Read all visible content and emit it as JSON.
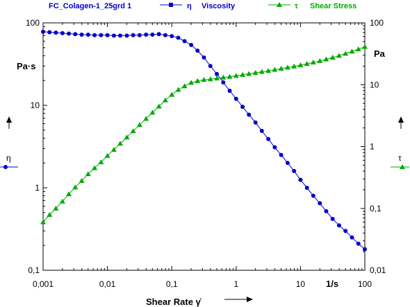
{
  "chart_data": {
    "type": "line",
    "header": {
      "sample": "FC_Colagen-1_25grd 1",
      "series_symbols": [
        "η",
        "τ"
      ],
      "series_names": [
        "Viscosity",
        "Shear Stress"
      ]
    },
    "xlabel": "Shear Rate γ̇",
    "x_unit": "1/s",
    "x_scale": "log",
    "xlim": [
      0.001,
      100
    ],
    "x_ticks": [
      "0,001",
      "0,01",
      "0,1",
      "1",
      "10",
      "100"
    ],
    "left_axis": {
      "symbol": "η",
      "unit": "Pa·s",
      "scale": "log",
      "ylim": [
        0.1,
        100
      ],
      "ticks": [
        "100",
        "10",
        "1",
        "0,1"
      ]
    },
    "right_axis": {
      "symbol": "τ",
      "unit": "Pa",
      "scale": "log",
      "ylim": [
        0.01,
        100
      ],
      "ticks": [
        "100",
        "10",
        "1",
        "0,1",
        "0,01"
      ]
    },
    "grid": false,
    "legend_position": "top",
    "colors": {
      "viscosity": "#0000cc",
      "shear_stress": "#00aa00"
    },
    "series": [
      {
        "name": "Viscosity",
        "axis": "left",
        "marker": "circle",
        "x": [
          0.001,
          0.00126,
          0.00158,
          0.002,
          0.00251,
          0.00316,
          0.00398,
          0.00501,
          0.00631,
          0.00794,
          0.01,
          0.0126,
          0.0158,
          0.02,
          0.0251,
          0.0316,
          0.0398,
          0.0501,
          0.0631,
          0.0794,
          0.1,
          0.126,
          0.158,
          0.2,
          0.251,
          0.316,
          0.398,
          0.501,
          0.631,
          0.794,
          1,
          1.26,
          1.58,
          2,
          2.51,
          3.16,
          3.98,
          5.01,
          6.31,
          7.94,
          10,
          12.6,
          15.8,
          20,
          25.1,
          31.6,
          39.8,
          50.1,
          63.1,
          79.4,
          100
        ],
        "y": [
          78,
          77,
          76,
          75,
          74,
          73,
          72,
          72,
          71,
          71,
          71,
          70,
          70,
          70,
          71,
          71,
          72,
          72,
          73,
          71,
          69,
          66,
          60,
          54,
          46,
          38,
          30,
          24,
          19,
          15,
          12,
          9.6,
          7.7,
          6.2,
          4.9,
          3.9,
          3.1,
          2.5,
          2.0,
          1.6,
          1.25,
          1.0,
          0.8,
          0.65,
          0.52,
          0.42,
          0.35,
          0.3,
          0.25,
          0.21,
          0.18
        ]
      },
      {
        "name": "Shear Stress",
        "axis": "right",
        "marker": "triangle",
        "x": [
          0.001,
          0.00126,
          0.00158,
          0.002,
          0.00251,
          0.00316,
          0.00398,
          0.00501,
          0.00631,
          0.00794,
          0.01,
          0.0126,
          0.0158,
          0.02,
          0.0251,
          0.0316,
          0.0398,
          0.0501,
          0.0631,
          0.0794,
          0.1,
          0.126,
          0.158,
          0.2,
          0.251,
          0.316,
          0.398,
          0.501,
          0.631,
          0.794,
          1,
          1.26,
          1.58,
          2,
          2.51,
          3.16,
          3.98,
          5.01,
          6.31,
          7.94,
          10,
          12.6,
          15.8,
          20,
          25.1,
          31.6,
          39.8,
          50.1,
          63.1,
          79.4,
          100
        ],
        "y": [
          0.06,
          0.079,
          0.1,
          0.13,
          0.17,
          0.22,
          0.28,
          0.36,
          0.45,
          0.56,
          0.71,
          0.89,
          1.12,
          1.41,
          1.78,
          2.24,
          2.82,
          3.55,
          4.47,
          5.62,
          6.9,
          8.3,
          9.5,
          10.8,
          11.5,
          12.0,
          12.3,
          12.7,
          13.1,
          13.5,
          14.0,
          14.5,
          15.0,
          15.6,
          16.2,
          16.8,
          17.5,
          18.2,
          19.0,
          19.8,
          20.7,
          21.8,
          23.0,
          24.3,
          25.8,
          27.5,
          29.5,
          31.8,
          34.5,
          37.5,
          41.0
        ]
      }
    ]
  }
}
